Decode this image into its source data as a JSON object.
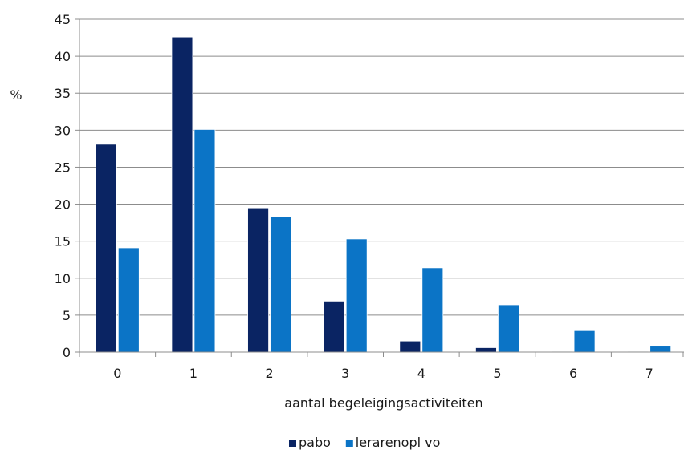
{
  "chart_data": {
    "type": "bar",
    "title": "",
    "xlabel": "aantal begeleigingsactiviteiten",
    "ylabel": "%",
    "categories": [
      "0",
      "1",
      "2",
      "3",
      "4",
      "5",
      "6",
      "7"
    ],
    "series": [
      {
        "name": "pabo",
        "color": "#0a2463",
        "values": [
          28.1,
          42.6,
          19.5,
          6.9,
          1.5,
          0.6,
          0.1,
          0.1
        ]
      },
      {
        "name": "lerarenopl vo",
        "color": "#0b74c6",
        "values": [
          14.1,
          30.1,
          18.3,
          15.3,
          11.4,
          6.4,
          2.9,
          0.8
        ]
      }
    ],
    "ylim": [
      0,
      45
    ],
    "yticks": [
      0,
      5,
      10,
      15,
      20,
      25,
      30,
      35,
      40,
      45
    ],
    "grid": true,
    "legend_position": "bottom"
  }
}
